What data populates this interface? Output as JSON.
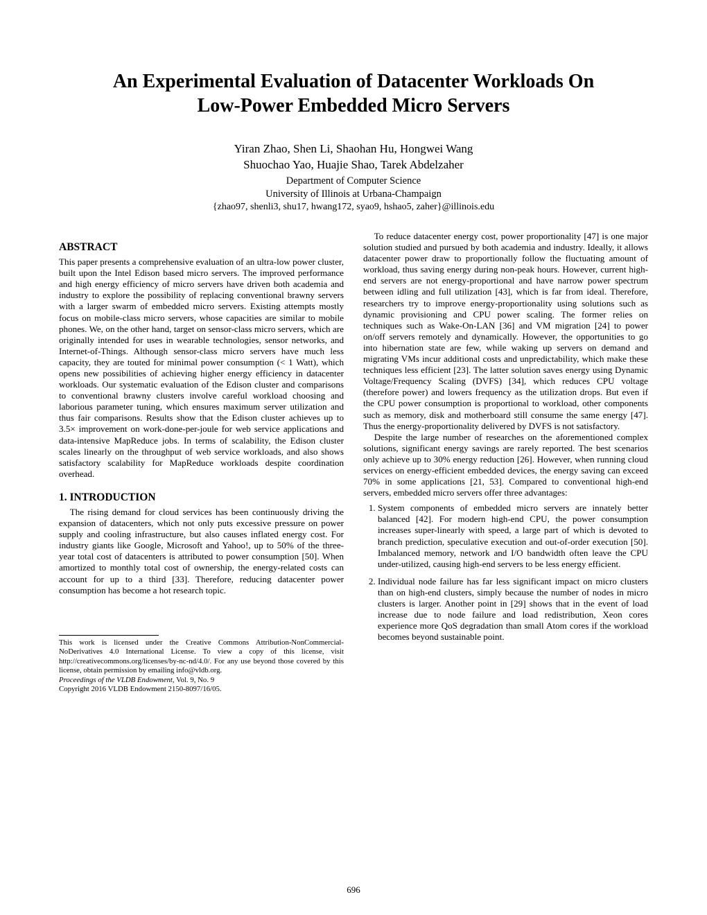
{
  "title_line1": "An Experimental Evaluation of Datacenter Workloads On",
  "title_line2": "Low-Power Embedded Micro Servers",
  "authors_line1": "Yiran Zhao, Shen Li, Shaohan Hu, Hongwei Wang",
  "authors_line2": "Shuochao Yao, Huajie Shao, Tarek Abdelzaher",
  "dept": "Department of Computer Science",
  "univ": "University of Illinois at Urbana-Champaign",
  "emails": "{zhao97, shenli3, shu17, hwang172, syao9, hshao5, zaher}@illinois.edu",
  "abstract_head": "ABSTRACT",
  "abstract_body": "This paper presents a comprehensive evaluation of an ultra-low power cluster, built upon the Intel Edison based micro servers. The improved performance and high energy efficiency of micro servers have driven both academia and industry to explore the possibility of replacing conventional brawny servers with a larger swarm of embedded micro servers. Existing attempts mostly focus on mobile-class micro servers, whose capacities are similar to mobile phones. We, on the other hand, target on sensor-class micro servers, which are originally intended for uses in wearable technologies, sensor networks, and Internet-of-Things. Although sensor-class micro servers have much less capacity, they are touted for minimal power consumption (< 1 Watt), which opens new possibilities of achieving higher energy efficiency in datacenter workloads. Our systematic evaluation of the Edison cluster and comparisons to conventional brawny clusters involve careful workload choosing and laborious parameter tuning, which ensures maximum server utilization and thus fair comparisons. Results show that the Edison cluster achieves up to 3.5× improvement on work-done-per-joule for web service applications and data-intensive MapReduce jobs. In terms of scalability, the Edison cluster scales linearly on the throughput of web service workloads, and also shows satisfactory scalability for MapReduce workloads despite coordination overhead.",
  "intro_head": "1.    INTRODUCTION",
  "intro_p1": "The rising demand for cloud services has been continuously driving the expansion of datacenters, which not only puts excessive pressure on power supply and cooling infrastructure, but also causes inflated energy cost. For industry giants like Google, Microsoft and Yahoo!, up to 50% of the three-year total cost of datacenters is attributed to power consumption [50]. When amortized to monthly total cost of ownership, the energy-related costs can account for up to a third [33]. Therefore, reducing datacenter power consumption has become a hot research topic.",
  "col2_p1": "To reduce datacenter energy cost, power proportionality [47] is one major solution studied and pursued by both academia and industry. Ideally, it allows datacenter power draw to proportionally follow the fluctuating amount of workload, thus saving energy during non-peak hours. However, current high-end servers are not energy-proportional and have narrow power spectrum between idling and full utilization [43], which is far from ideal. Therefore, researchers try to improve energy-proportionality using solutions such as dynamic provisioning and CPU power scaling. The former relies on techniques such as Wake-On-LAN [36] and VM migration [24] to power on/off servers remotely and dynamically. However, the opportunities to go into hibernation state are few, while waking up servers on demand and migrating VMs incur additional costs and unpredictability, which make these techniques less efficient [23]. The latter solution saves energy using Dynamic Voltage/Frequency Scaling (DVFS) [34], which reduces CPU voltage (therefore power) and lowers frequency as the utilization drops. But even if the CPU power consumption is proportional to workload, other components such as memory, disk and motherboard still consume the same energy [47]. Thus the energy-proportionality delivered by DVFS is not satisfactory.",
  "col2_p2": "Despite the large number of researches on the aforementioned complex solutions, significant energy savings are rarely reported. The best scenarios only achieve up to 30% energy reduction [26]. However, when running cloud services on energy-efficient embedded devices, the energy saving can exceed 70% in some applications [21, 53]. Compared to conventional high-end servers, embedded micro servers offer three advantages:",
  "adv1": "System components of embedded micro servers are innately better balanced [42]. For modern high-end CPU, the power consumption increases super-linearly with speed, a large part of which is devoted to branch prediction, speculative execution and out-of-order execution [50]. Imbalanced memory, network and I/O bandwidth often leave the CPU under-utilized, causing high-end servers to be less energy efficient.",
  "adv2": "Individual node failure has far less significant impact on micro clusters than on high-end clusters, simply because the number of nodes in micro clusters is larger. Another point in [29] shows that in the event of load increase due to node failure and load redistribution, Xeon cores experience more QoS degradation than small Atom cores if the workload becomes beyond sustainable point.",
  "footnote1": "This work is licensed under the Creative Commons Attribution-NonCommercial-NoDerivatives 4.0 International License. To view a copy of this license, visit http://creativecommons.org/licenses/by-nc-nd/4.0/. For any use beyond those covered by this license, obtain permission by emailing info@vldb.org.",
  "footnote2_italic": "Proceedings of the VLDB Endowment,",
  "footnote2_rest": " Vol. 9, No. 9",
  "footnote3": "Copyright 2016 VLDB Endowment 2150-8097/16/05.",
  "page_number": "696"
}
